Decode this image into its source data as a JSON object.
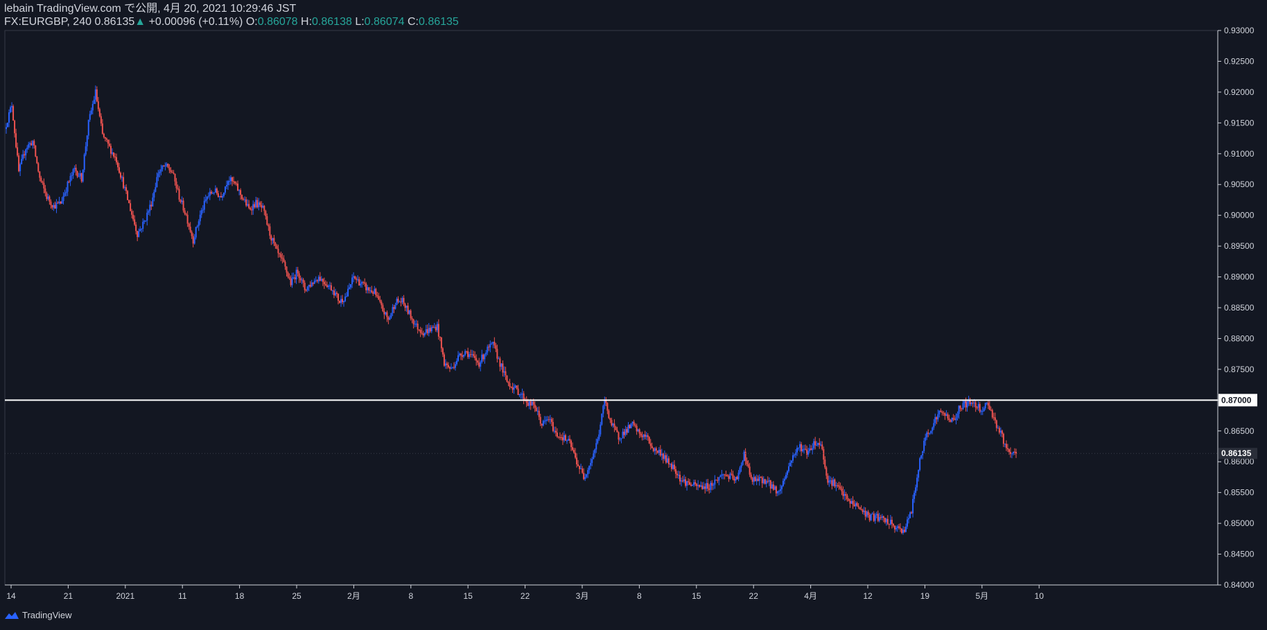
{
  "header": {
    "published_line": "lebain TradingView.com で公開, 4月 20, 2021 10:29:46 JST",
    "symbol": "FX:EURGBP, 240",
    "last": "0.86135",
    "change": "+0.00096 (+0.11%)",
    "open_label": "O:",
    "open": "0.86078",
    "high_label": "H:",
    "high": "0.86138",
    "low_label": "L:",
    "low": "0.86074",
    "close_label": "C:",
    "close": "0.86135"
  },
  "brand": {
    "name": "TradingView",
    "icon": "tradingview-logo-icon"
  },
  "colors": {
    "background": "#131722",
    "up": "#2962ff",
    "down": "#ef5350",
    "text": "#d1d4dc",
    "accent": "#26a69a",
    "level_line": "#ffffff"
  },
  "chart_data": {
    "type": "candlestick",
    "symbol": "FX:EURGBP",
    "timeframe": "240",
    "ylim": [
      0.84,
      0.93
    ],
    "y_ticks": [
      "0.84000",
      "0.84500",
      "0.85000",
      "0.85500",
      "0.86000",
      "0.86500",
      "0.87000",
      "0.87500",
      "0.88000",
      "0.88500",
      "0.89000",
      "0.89500",
      "0.90000",
      "0.90500",
      "0.91000",
      "0.91500",
      "0.92000",
      "0.92500",
      "0.93000"
    ],
    "x_ticks": [
      "14",
      "21",
      "2021",
      "11",
      "18",
      "25",
      "2月",
      "8",
      "15",
      "22",
      "3月",
      "8",
      "15",
      "22",
      "4月",
      "12",
      "19",
      "5月",
      "10"
    ],
    "horizontal_level": {
      "value": 0.87,
      "label": "0.87000"
    },
    "last_price_label": "0.86135",
    "grid": false,
    "price_path": [
      {
        "t": 0,
        "p": 0.914
      },
      {
        "t": 1,
        "p": 0.918
      },
      {
        "t": 2,
        "p": 0.907
      },
      {
        "t": 3,
        "p": 0.911
      },
      {
        "t": 4,
        "p": 0.912
      },
      {
        "t": 5,
        "p": 0.906
      },
      {
        "t": 6,
        "p": 0.903
      },
      {
        "t": 7,
        "p": 0.9015
      },
      {
        "t": 8,
        "p": 0.902
      },
      {
        "t": 9,
        "p": 0.905
      },
      {
        "t": 10,
        "p": 0.9075
      },
      {
        "t": 11,
        "p": 0.906
      },
      {
        "t": 12,
        "p": 0.915
      },
      {
        "t": 13,
        "p": 0.92
      },
      {
        "t": 14,
        "p": 0.913
      },
      {
        "t": 15,
        "p": 0.911
      },
      {
        "t": 16,
        "p": 0.909
      },
      {
        "t": 17,
        "p": 0.905
      },
      {
        "t": 18,
        "p": 0.901
      },
      {
        "t": 19,
        "p": 0.897
      },
      {
        "t": 20,
        "p": 0.899
      },
      {
        "t": 21,
        "p": 0.902
      },
      {
        "t": 22,
        "p": 0.907
      },
      {
        "t": 23,
        "p": 0.908
      },
      {
        "t": 24,
        "p": 0.907
      },
      {
        "t": 25,
        "p": 0.903
      },
      {
        "t": 26,
        "p": 0.9
      },
      {
        "t": 27,
        "p": 0.896
      },
      {
        "t": 28,
        "p": 0.9
      },
      {
        "t": 29,
        "p": 0.903
      },
      {
        "t": 30,
        "p": 0.904
      },
      {
        "t": 31,
        "p": 0.903
      },
      {
        "t": 32,
        "p": 0.906
      },
      {
        "t": 33,
        "p": 0.905
      },
      {
        "t": 34,
        "p": 0.903
      },
      {
        "t": 35,
        "p": 0.901
      },
      {
        "t": 36,
        "p": 0.902
      },
      {
        "t": 37,
        "p": 0.901
      },
      {
        "t": 38,
        "p": 0.897
      },
      {
        "t": 39,
        "p": 0.894
      },
      {
        "t": 40,
        "p": 0.892
      },
      {
        "t": 41,
        "p": 0.889
      },
      {
        "t": 42,
        "p": 0.891
      },
      {
        "t": 43,
        "p": 0.888
      },
      {
        "t": 44,
        "p": 0.889
      },
      {
        "t": 45,
        "p": 0.89
      },
      {
        "t": 46,
        "p": 0.889
      },
      {
        "t": 47,
        "p": 0.888
      },
      {
        "t": 48,
        "p": 0.886
      },
      {
        "t": 49,
        "p": 0.887
      },
      {
        "t": 50,
        "p": 0.89
      },
      {
        "t": 51,
        "p": 0.889
      },
      {
        "t": 52,
        "p": 0.888
      },
      {
        "t": 53,
        "p": 0.8875
      },
      {
        "t": 54,
        "p": 0.885
      },
      {
        "t": 55,
        "p": 0.883
      },
      {
        "t": 56,
        "p": 0.886
      },
      {
        "t": 57,
        "p": 0.886
      },
      {
        "t": 58,
        "p": 0.884
      },
      {
        "t": 59,
        "p": 0.882
      },
      {
        "t": 60,
        "p": 0.881
      },
      {
        "t": 61,
        "p": 0.8815
      },
      {
        "t": 62,
        "p": 0.882
      },
      {
        "t": 63,
        "p": 0.876
      },
      {
        "t": 64,
        "p": 0.875
      },
      {
        "t": 65,
        "p": 0.877
      },
      {
        "t": 66,
        "p": 0.878
      },
      {
        "t": 67,
        "p": 0.877
      },
      {
        "t": 68,
        "p": 0.876
      },
      {
        "t": 69,
        "p": 0.878
      },
      {
        "t": 70,
        "p": 0.879
      },
      {
        "t": 71,
        "p": 0.876
      },
      {
        "t": 72,
        "p": 0.873
      },
      {
        "t": 73,
        "p": 0.872
      },
      {
        "t": 74,
        "p": 0.871
      },
      {
        "t": 75,
        "p": 0.8695
      },
      {
        "t": 76,
        "p": 0.869
      },
      {
        "t": 77,
        "p": 0.866
      },
      {
        "t": 78,
        "p": 0.867
      },
      {
        "t": 79,
        "p": 0.8645
      },
      {
        "t": 80,
        "p": 0.864
      },
      {
        "t": 81,
        "p": 0.863
      },
      {
        "t": 82,
        "p": 0.86
      },
      {
        "t": 83,
        "p": 0.8575
      },
      {
        "t": 84,
        "p": 0.86
      },
      {
        "t": 85,
        "p": 0.8635
      },
      {
        "t": 86,
        "p": 0.87
      },
      {
        "t": 87,
        "p": 0.866
      },
      {
        "t": 88,
        "p": 0.864
      },
      {
        "t": 89,
        "p": 0.865
      },
      {
        "t": 90,
        "p": 0.866
      },
      {
        "t": 91,
        "p": 0.8645
      },
      {
        "t": 92,
        "p": 0.864
      },
      {
        "t": 93,
        "p": 0.862
      },
      {
        "t": 94,
        "p": 0.8615
      },
      {
        "t": 95,
        "p": 0.86
      },
      {
        "t": 96,
        "p": 0.859
      },
      {
        "t": 97,
        "p": 0.857
      },
      {
        "t": 98,
        "p": 0.8565
      },
      {
        "t": 99,
        "p": 0.856
      },
      {
        "t": 100,
        "p": 0.856
      },
      {
        "t": 101,
        "p": 0.856
      },
      {
        "t": 102,
        "p": 0.857
      },
      {
        "t": 103,
        "p": 0.858
      },
      {
        "t": 104,
        "p": 0.8575
      },
      {
        "t": 105,
        "p": 0.857
      },
      {
        "t": 106,
        "p": 0.8615
      },
      {
        "t": 107,
        "p": 0.857
      },
      {
        "t": 108,
        "p": 0.857
      },
      {
        "t": 109,
        "p": 0.857
      },
      {
        "t": 110,
        "p": 0.856
      },
      {
        "t": 111,
        "p": 0.855
      },
      {
        "t": 112,
        "p": 0.858
      },
      {
        "t": 113,
        "p": 0.861
      },
      {
        "t": 114,
        "p": 0.8625
      },
      {
        "t": 115,
        "p": 0.8615
      },
      {
        "t": 116,
        "p": 0.863
      },
      {
        "t": 117,
        "p": 0.863
      },
      {
        "t": 118,
        "p": 0.857
      },
      {
        "t": 119,
        "p": 0.8565
      },
      {
        "t": 120,
        "p": 0.855
      },
      {
        "t": 121,
        "p": 0.8535
      },
      {
        "t": 122,
        "p": 0.853
      },
      {
        "t": 123,
        "p": 0.852
      },
      {
        "t": 124,
        "p": 0.851
      },
      {
        "t": 125,
        "p": 0.851
      },
      {
        "t": 126,
        "p": 0.8505
      },
      {
        "t": 127,
        "p": 0.85
      },
      {
        "t": 128,
        "p": 0.849
      },
      {
        "t": 129,
        "p": 0.849
      },
      {
        "t": 130,
        "p": 0.852
      },
      {
        "t": 131,
        "p": 0.859
      },
      {
        "t": 132,
        "p": 0.864
      },
      {
        "t": 133,
        "p": 0.866
      },
      {
        "t": 134,
        "p": 0.868
      },
      {
        "t": 135,
        "p": 0.8675
      },
      {
        "t": 136,
        "p": 0.8665
      },
      {
        "t": 137,
        "p": 0.869
      },
      {
        "t": 138,
        "p": 0.8695
      },
      {
        "t": 139,
        "p": 0.8695
      },
      {
        "t": 140,
        "p": 0.8685
      },
      {
        "t": 141,
        "p": 0.8695
      },
      {
        "t": 142,
        "p": 0.8665
      },
      {
        "t": 143,
        "p": 0.864
      },
      {
        "t": 144,
        "p": 0.861
      },
      {
        "t": 145,
        "p": 0.86135
      }
    ]
  }
}
